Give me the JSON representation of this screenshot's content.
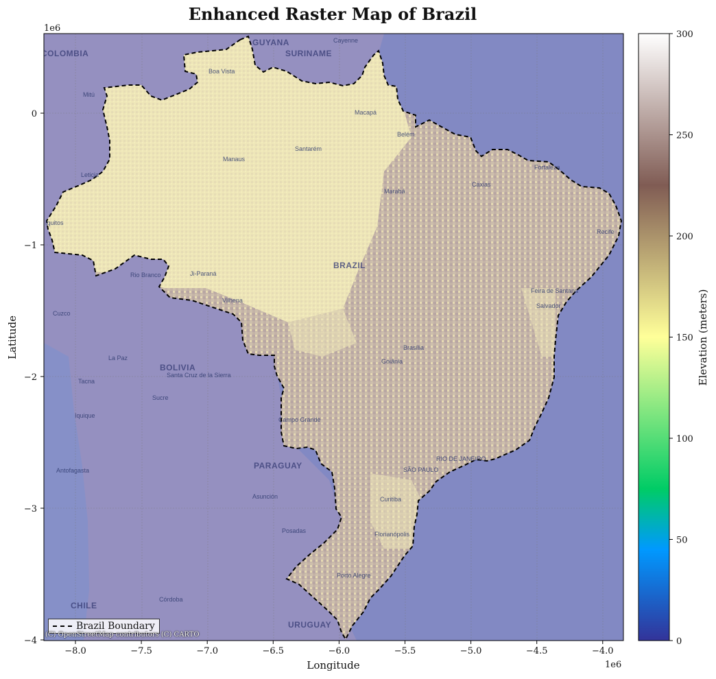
{
  "title": "Enhanced Raster Map of Brazil",
  "axes": {
    "xlabel": "Longitude",
    "ylabel": "Latitude",
    "x_offset_label": "1e6",
    "y_offset_label": "1e6",
    "x_ticks": [
      "−8.0",
      "−7.5",
      "−7.0",
      "−6.5",
      "−6.0",
      "−5.5",
      "−5.0",
      "−4.5",
      "−4.0"
    ],
    "y_ticks": [
      "0",
      "−1",
      "−2",
      "−3",
      "−4"
    ]
  },
  "colorbar": {
    "label": "Elevation (meters)",
    "ticks": [
      "0",
      "50",
      "100",
      "150",
      "200",
      "250",
      "300"
    ],
    "colormap": "terrain",
    "range": [
      0,
      300
    ]
  },
  "legend": {
    "label": "Brazil Boundary"
  },
  "attribution": "(C) OpenStreetMap contributors (C) CARTO",
  "colors": {
    "ocean": "#8289c3",
    "land_background": "#9590c0",
    "raster_low": "#efe7b6",
    "raster_high": "#bda8a2"
  },
  "countries": [
    "COLOMBIA",
    "GUYANA",
    "SURINAME",
    "BOLIVIA",
    "PARAGUAY",
    "CHILE",
    "URUGUAY",
    "BRAZIL"
  ],
  "cities": [
    "Cayenne",
    "Boa Vista",
    "Mitú",
    "Macapá",
    "Belém",
    "Santarém",
    "Manaus",
    "Fortaleza",
    "Caxias",
    "Marabá",
    "Recife",
    "Leticia",
    "Iquitos",
    "Rio Branco",
    "Ji-Paraná",
    "Vilhena",
    "Feira de Santana",
    "Salvador",
    "Cuzco",
    "Brasília",
    "Goiânia",
    "La Paz",
    "Santa Cruz de la Sierra",
    "Tacna",
    "Sucre",
    "Iquique",
    "Campo Grande",
    "RIO DE JANEIRO",
    "SÃO PAULO",
    "Antofagasta",
    "Asunción",
    "Curitiba",
    "Posadas",
    "Florianópolis",
    "Porto Alegre",
    "Córdoba"
  ]
}
